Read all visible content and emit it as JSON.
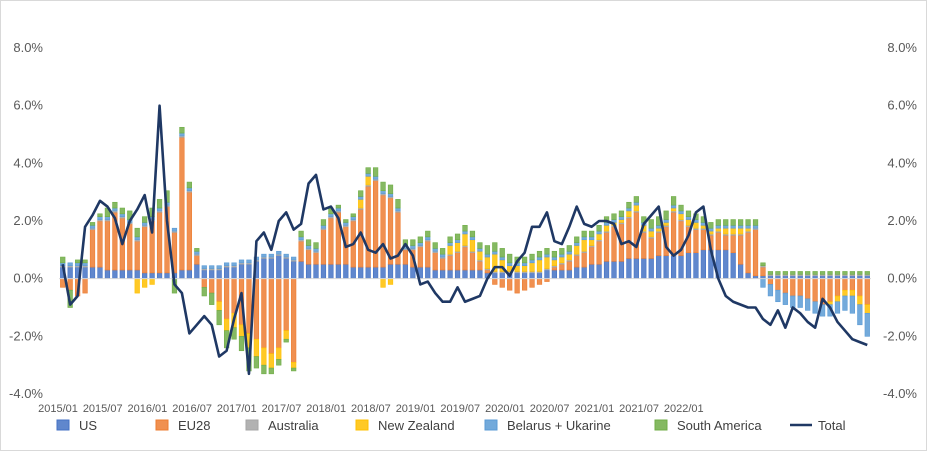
{
  "chart_data": {
    "type": "bar",
    "stacked": true,
    "y_format": "percent_1dp",
    "ylim": [
      -4.0,
      8.0
    ],
    "yticks": [
      -4.0,
      -2.0,
      0.0,
      2.0,
      4.0,
      6.0,
      8.0
    ],
    "ytick_labels": [
      "-4.0%",
      "-2.0%",
      "0.0%",
      "2.0%",
      "4.0%",
      "6.0%",
      "8.0%"
    ],
    "secondary_axis": true,
    "grid": false,
    "legend_position": "bottom",
    "x_start": "2015/01",
    "x_tick_labels": [
      "2015/01",
      "2015/07",
      "2016/01",
      "2016/07",
      "2017/01",
      "2017/07",
      "2018/01",
      "2018/07",
      "2019/01",
      "2019/07",
      "2020/01",
      "2020/07",
      "2021/01",
      "2021/07",
      "2022/01"
    ],
    "series": [
      {
        "name": "US",
        "kind": "bar",
        "color": "#4472c4",
        "values": [
          0.4,
          0.4,
          0.4,
          0.4,
          0.4,
          0.4,
          0.3,
          0.3,
          0.3,
          0.3,
          0.3,
          0.2,
          0.2,
          0.2,
          0.2,
          0.2,
          0.3,
          0.3,
          0.5,
          0.3,
          0.3,
          0.3,
          0.4,
          0.4,
          0.5,
          0.5,
          0.6,
          0.7,
          0.7,
          0.8,
          0.7,
          0.6,
          0.6,
          0.5,
          0.5,
          0.5,
          0.5,
          0.5,
          0.5,
          0.4,
          0.4,
          0.4,
          0.4,
          0.4,
          0.5,
          0.5,
          0.5,
          0.4,
          0.4,
          0.4,
          0.3,
          0.3,
          0.3,
          0.3,
          0.3,
          0.3,
          0.3,
          0.2,
          0.2,
          0.2,
          0.2,
          0.2,
          0.2,
          0.2,
          0.2,
          0.3,
          0.3,
          0.3,
          0.3,
          0.4,
          0.4,
          0.5,
          0.5,
          0.6,
          0.6,
          0.6,
          0.7,
          0.7,
          0.7,
          0.7,
          0.8,
          0.8,
          0.8,
          0.8,
          0.9,
          0.9,
          1.0,
          1.0,
          1.0,
          1.0,
          0.9,
          0.5,
          0.2,
          0.1,
          0.1,
          0.1,
          0.1,
          0.1,
          0.1,
          0.1,
          0.1,
          0.1,
          0.1,
          0.1,
          0.1,
          0.1,
          0.1,
          0.1,
          0.1
        ]
      },
      {
        "name": "EU28",
        "kind": "bar",
        "color": "#ed7d31",
        "values": [
          -0.3,
          -0.4,
          -0.6,
          -0.5,
          1.3,
          1.6,
          1.7,
          2.0,
          1.8,
          1.6,
          1.0,
          1.6,
          1.8,
          2.1,
          2.3,
          1.4,
          4.6,
          2.7,
          0.3,
          -0.3,
          -0.5,
          -0.8,
          -1.4,
          -1.2,
          -1.6,
          -1.9,
          -2.1,
          -2.4,
          -2.6,
          -2.4,
          -1.8,
          -2.9,
          0.7,
          0.5,
          0.4,
          1.2,
          1.6,
          1.8,
          1.3,
          1.6,
          2.0,
          2.8,
          3.0,
          2.5,
          2.3,
          1.8,
          0.5,
          0.6,
          0.7,
          0.9,
          0.6,
          0.4,
          0.5,
          0.6,
          0.8,
          0.6,
          0.3,
          0.1,
          -0.2,
          -0.3,
          -0.4,
          -0.5,
          -0.4,
          -0.3,
          -0.2,
          -0.1,
          0.1,
          0.2,
          0.3,
          0.4,
          0.5,
          0.6,
          0.8,
          1.0,
          1.2,
          1.3,
          1.4,
          1.6,
          0.9,
          0.7,
          0.8,
          1.0,
          1.5,
          1.2,
          0.9,
          0.8,
          0.7,
          0.5,
          0.6,
          0.5,
          0.6,
          1.0,
          1.4,
          1.6,
          0.3,
          -0.2,
          -0.4,
          -0.5,
          -0.6,
          -0.6,
          -0.7,
          -0.8,
          -0.9,
          -0.8,
          -0.6,
          -0.4,
          -0.4,
          -0.6,
          -0.9
        ]
      },
      {
        "name": "Australia",
        "kind": "bar",
        "color": "#a5a5a5",
        "values": [
          0.05,
          0.05,
          0.05,
          0.05,
          0.05,
          0.05,
          0.05,
          0.05,
          0.05,
          0.05,
          0.05,
          0.05,
          0.05,
          0.05,
          0.05,
          0.05,
          0.05,
          0.05,
          0.05,
          0.05,
          0.05,
          0.05,
          0.05,
          0.05,
          0.05,
          0.05,
          0.05,
          0.05,
          0.05,
          0.05,
          0.05,
          0.05,
          0.05,
          0.05,
          0.05,
          0.05,
          0.05,
          0.05,
          0.05,
          0.05,
          0.05,
          0.05,
          0.05,
          0.05,
          0.05,
          0.05,
          0.05,
          0.05,
          0.05,
          0.05,
          0.05,
          0.05,
          0.05,
          0.05,
          0.05,
          0.05,
          0.05,
          0.05,
          0.05,
          0.05,
          0.05,
          0.05,
          0.05,
          0.05,
          0.05,
          0.05,
          0.05,
          0.05,
          0.05,
          0.05,
          0.05,
          0.05,
          0.05,
          0.05,
          0.05,
          0.05,
          0.05,
          0.05,
          0.05,
          0.05,
          0.05,
          0.05,
          0.05,
          0.05,
          0.05,
          0.05,
          0.05,
          0.05,
          0.05,
          0.05,
          0.05,
          0.05,
          0.05,
          0.05,
          0.05,
          0.05,
          0.05,
          0.05,
          0.05,
          0.05,
          0.05,
          0.05,
          0.05,
          0.05,
          0.05,
          0.05,
          0.05,
          0.05,
          0.05
        ]
      },
      {
        "name": "New Zealand",
        "kind": "bar",
        "color": "#ffc000",
        "values": [
          0.0,
          0.0,
          0.0,
          0.0,
          0.0,
          0.0,
          0.0,
          0.0,
          0.0,
          0.0,
          -0.5,
          -0.3,
          -0.2,
          0.0,
          0.0,
          0.0,
          0.0,
          0.0,
          0.0,
          0.0,
          0.0,
          -0.3,
          -0.4,
          -0.5,
          -0.4,
          -0.5,
          -0.6,
          -0.6,
          -0.5,
          -0.4,
          -0.3,
          -0.2,
          0.0,
          0.0,
          0.0,
          0.0,
          0.0,
          0.0,
          0.0,
          0.0,
          0.3,
          0.3,
          0.0,
          -0.3,
          -0.2,
          0.0,
          0.0,
          0.0,
          0.0,
          0.0,
          0.0,
          0.0,
          0.3,
          0.3,
          0.4,
          0.4,
          0.3,
          0.4,
          0.6,
          0.4,
          0.2,
          0.2,
          0.2,
          0.3,
          0.4,
          0.4,
          0.2,
          0.2,
          0.2,
          0.3,
          0.4,
          0.2,
          0.2,
          0.2,
          0.1,
          0.1,
          0.2,
          0.2,
          0.2,
          0.2,
          0.1,
          0.1,
          0.1,
          0.2,
          0.2,
          0.2,
          0.1,
          0.1,
          0.1,
          0.2,
          0.2,
          0.2,
          0.1,
          0.0,
          0.0,
          0.0,
          0.0,
          0.0,
          0.0,
          0.0,
          0.0,
          0.0,
          0.0,
          -0.1,
          -0.2,
          -0.2,
          -0.2,
          -0.3,
          -0.3
        ]
      },
      {
        "name": "Belarus + Ukarine",
        "kind": "bar",
        "color": "#5b9bd5",
        "values": [
          0.1,
          0.1,
          0.1,
          0.1,
          0.1,
          0.1,
          0.1,
          0.1,
          0.1,
          0.1,
          0.1,
          0.1,
          0.1,
          0.1,
          0.1,
          0.1,
          0.1,
          0.1,
          0.1,
          0.1,
          0.1,
          0.1,
          0.1,
          0.1,
          0.1,
          0.1,
          0.1,
          0.1,
          0.1,
          0.1,
          0.1,
          0.1,
          0.1,
          0.1,
          0.1,
          0.1,
          0.1,
          0.1,
          0.1,
          0.1,
          0.1,
          0.1,
          0.1,
          0.1,
          0.1,
          0.1,
          0.1,
          0.1,
          0.1,
          0.1,
          0.1,
          0.1,
          0.1,
          0.1,
          0.1,
          0.1,
          0.1,
          0.1,
          0.1,
          0.1,
          0.1,
          0.1,
          0.1,
          0.1,
          0.1,
          0.1,
          0.1,
          0.1,
          0.1,
          0.1,
          0.1,
          0.1,
          0.1,
          0.1,
          0.1,
          0.1,
          0.1,
          0.1,
          0.1,
          0.1,
          0.1,
          0.1,
          0.1,
          0.1,
          0.1,
          0.1,
          0.1,
          0.1,
          0.1,
          0.1,
          0.1,
          0.1,
          0.1,
          0.1,
          -0.3,
          -0.4,
          -0.4,
          -0.4,
          -0.4,
          -0.4,
          -0.4,
          -0.4,
          -0.4,
          -0.4,
          -0.4,
          -0.5,
          -0.6,
          -0.7,
          -0.8
        ]
      },
      {
        "name": "South America",
        "kind": "bar",
        "color": "#70ad47",
        "values": [
          0.2,
          -0.6,
          0.1,
          0.1,
          0.1,
          0.1,
          0.3,
          0.2,
          0.2,
          0.3,
          0.3,
          0.2,
          0.3,
          0.3,
          0.4,
          -0.5,
          0.2,
          0.2,
          0.1,
          -0.3,
          -0.4,
          -0.5,
          -0.6,
          -0.4,
          -0.5,
          -0.8,
          -0.4,
          -0.3,
          -0.2,
          -0.2,
          -0.1,
          -0.1,
          0.2,
          0.2,
          0.2,
          0.2,
          0.2,
          0.1,
          0.1,
          0.1,
          0.2,
          0.2,
          0.3,
          0.3,
          0.3,
          0.3,
          0.2,
          0.2,
          0.2,
          0.2,
          0.2,
          0.2,
          0.2,
          0.2,
          0.2,
          0.2,
          0.2,
          0.3,
          0.3,
          0.3,
          0.3,
          0.2,
          0.2,
          0.2,
          0.2,
          0.2,
          0.2,
          0.2,
          0.2,
          0.2,
          0.2,
          0.2,
          0.2,
          0.2,
          0.2,
          0.2,
          0.2,
          0.2,
          0.2,
          0.3,
          0.3,
          0.3,
          0.3,
          0.2,
          0.2,
          0.2,
          0.2,
          0.2,
          0.2,
          0.2,
          0.2,
          0.2,
          0.2,
          0.2,
          0.1,
          0.1,
          0.1,
          0.1,
          0.1,
          0.1,
          0.1,
          0.1,
          0.1,
          0.1,
          0.1,
          0.1,
          0.1,
          0.1,
          0.1
        ]
      },
      {
        "name": "Total",
        "kind": "line",
        "color": "#1f3864",
        "values": [
          0.5,
          -0.9,
          -0.6,
          1.8,
          2.2,
          2.7,
          2.5,
          2.1,
          1.2,
          2.0,
          2.4,
          2.9,
          1.6,
          6.0,
          2.0,
          -0.2,
          -0.5,
          -1.9,
          -1.6,
          -1.3,
          -1.6,
          -2.7,
          -2.5,
          -1.4,
          -0.5,
          -3.3,
          1.3,
          1.6,
          1.0,
          2.0,
          2.3,
          1.7,
          1.9,
          3.3,
          3.6,
          2.4,
          2.5,
          2.1,
          1.1,
          1.2,
          1.6,
          1.0,
          0.9,
          1.2,
          0.7,
          0.8,
          1.2,
          0.8,
          -0.2,
          -0.1,
          -0.5,
          -0.8,
          -0.8,
          -0.3,
          -0.8,
          -0.7,
          -0.6,
          0.0,
          0.4,
          0.4,
          0.1,
          0.6,
          0.9,
          1.8,
          1.8,
          2.3,
          1.3,
          1.2,
          1.8,
          2.5,
          1.9,
          1.8,
          2.0,
          2.0,
          1.9,
          1.2,
          1.3,
          1.1,
          1.9,
          2.2,
          2.5,
          1.1,
          0.8,
          1.0,
          1.5,
          2.3,
          2.5,
          1.0,
          0.0,
          -0.6,
          -0.8,
          -0.9,
          -1.0,
          -1.0,
          -1.4,
          -1.6,
          -1.1,
          -1.7,
          -1.0,
          -1.2,
          -1.5,
          -1.7,
          -0.7,
          -1.0,
          -1.5,
          -1.8,
          -2.1,
          -2.2,
          -2.3
        ]
      }
    ]
  }
}
